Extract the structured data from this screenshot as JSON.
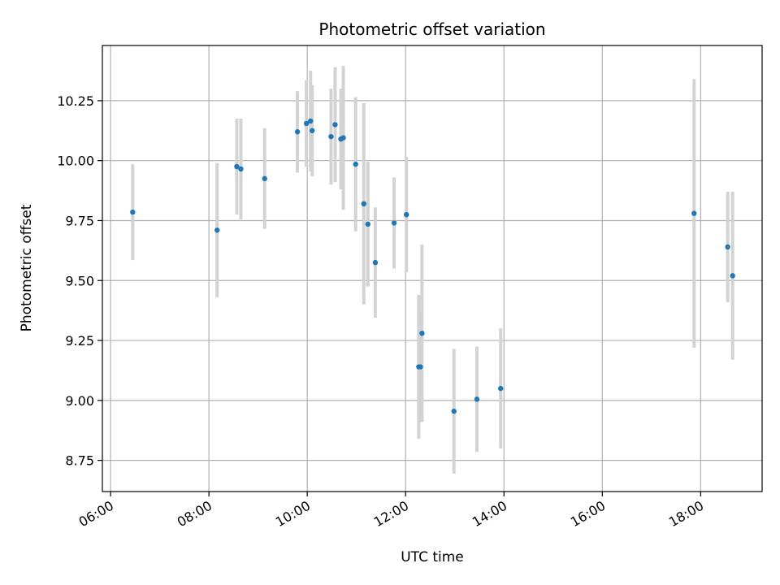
{
  "chart_data": {
    "type": "scatter",
    "title": "Photometric offset variation",
    "xlabel": "UTC time",
    "ylabel": "Photometric offset",
    "x_tick_labels": [
      "06:00",
      "08:00",
      "10:00",
      "12:00",
      "14:00",
      "16:00",
      "18:00"
    ],
    "y_tick_labels": [
      "8.75",
      "9.00",
      "9.25",
      "9.50",
      "9.75",
      "10.00",
      "10.25"
    ],
    "xlim": [
      "05:50",
      "19:15"
    ],
    "ylim": [
      8.62,
      10.48
    ],
    "grid": true,
    "colors": {
      "point": "#1f77b4",
      "errorbar": "#d3d3d3",
      "grid": "#b0b0b0",
      "axis": "#000000"
    },
    "points": [
      {
        "t": "06:27",
        "y": 9.785,
        "err": 0.2
      },
      {
        "t": "08:10",
        "y": 9.71,
        "err": 0.28
      },
      {
        "t": "08:34",
        "y": 9.975,
        "err": 0.2
      },
      {
        "t": "08:39",
        "y": 9.965,
        "err": 0.21
      },
      {
        "t": "09:08",
        "y": 9.925,
        "err": 0.21
      },
      {
        "t": "09:48",
        "y": 10.12,
        "err": 0.17
      },
      {
        "t": "09:59",
        "y": 10.155,
        "err": 0.18
      },
      {
        "t": "10:04",
        "y": 10.165,
        "err": 0.21
      },
      {
        "t": "10:06",
        "y": 10.125,
        "err": 0.19
      },
      {
        "t": "10:29",
        "y": 10.1,
        "err": 0.2
      },
      {
        "t": "10:34",
        "y": 10.15,
        "err": 0.24
      },
      {
        "t": "10:41",
        "y": 10.09,
        "err": 0.21
      },
      {
        "t": "10:44",
        "y": 10.095,
        "err": 0.3
      },
      {
        "t": "10:59",
        "y": 9.985,
        "err": 0.28
      },
      {
        "t": "11:09",
        "y": 9.82,
        "err": 0.42
      },
      {
        "t": "11:14",
        "y": 9.735,
        "err": 0.26
      },
      {
        "t": "11:23",
        "y": 9.575,
        "err": 0.23
      },
      {
        "t": "11:46",
        "y": 9.74,
        "err": 0.19
      },
      {
        "t": "12:01",
        "y": 9.775,
        "err": 0.24
      },
      {
        "t": "12:16",
        "y": 9.14,
        "err": 0.3
      },
      {
        "t": "12:18",
        "y": 9.14,
        "err": 0.23
      },
      {
        "t": "12:20",
        "y": 9.28,
        "err": 0.37
      },
      {
        "t": "12:59",
        "y": 8.955,
        "err": 0.26
      },
      {
        "t": "13:27",
        "y": 9.005,
        "err": 0.22
      },
      {
        "t": "13:56",
        "y": 9.05,
        "err": 0.25
      },
      {
        "t": "17:52",
        "y": 9.78,
        "err": 0.56
      },
      {
        "t": "18:33",
        "y": 9.64,
        "err": 0.23
      },
      {
        "t": "18:39",
        "y": 9.52,
        "err": 0.35
      }
    ]
  }
}
